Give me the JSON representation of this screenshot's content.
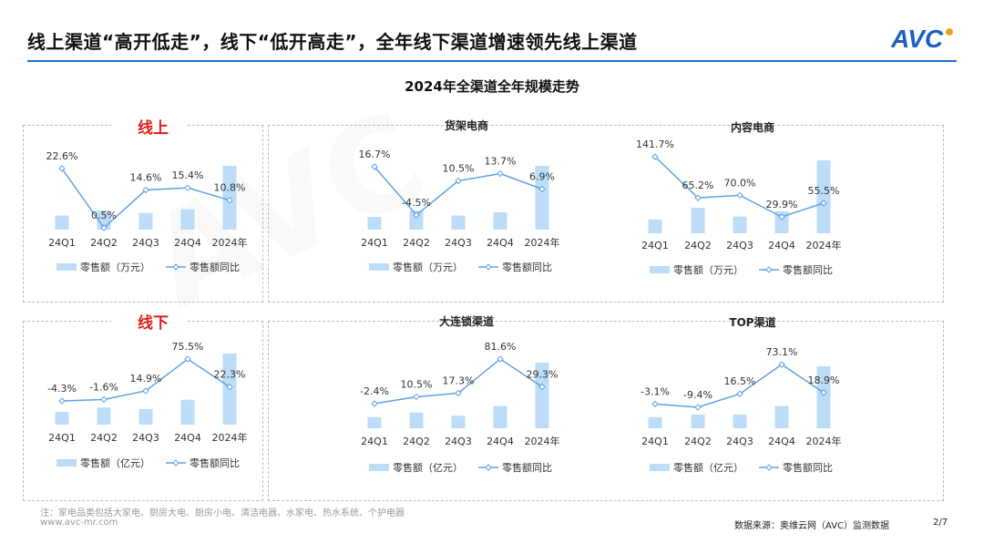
{
  "header": {
    "title": "线上渠道“高开低走”，线下“低开高走”，全年线下渠道增速领先线上渠道",
    "logo_text": "AVC"
  },
  "main_title": "2024年全渠道全年规模走势",
  "section_labels": {
    "online": "线上",
    "offline": "线下"
  },
  "colors": {
    "bar": "#bcdcf7",
    "line": "#5fa2e4",
    "section_label": "#e0201a",
    "header_line": "#1f6fc9"
  },
  "chart_data": [
    {
      "id": "online",
      "type": "bar+line",
      "title": "",
      "categories": [
        "24Q1",
        "24Q2",
        "24Q3",
        "24Q4",
        "2024年"
      ],
      "bar_values": [
        0.22,
        0.3,
        0.26,
        0.32,
        1.0
      ],
      "line_values": [
        22.6,
        0.5,
        14.6,
        15.4,
        10.8
      ],
      "line_labels": [
        "22.6%",
        "0.5%",
        "14.6%",
        "15.4%",
        "10.8%"
      ],
      "legend": [
        "零售额（万元）",
        "零售额同比"
      ]
    },
    {
      "id": "shelf",
      "type": "bar+line",
      "title": "货架电商",
      "categories": [
        "24Q1",
        "24Q2",
        "24Q3",
        "24Q4",
        "2024年"
      ],
      "bar_values": [
        0.2,
        0.3,
        0.22,
        0.27,
        1.0
      ],
      "line_values": [
        16.7,
        -4.5,
        10.5,
        13.7,
        6.9
      ],
      "line_labels": [
        "16.7%",
        "-4.5%",
        "10.5%",
        "13.7%",
        "6.9%"
      ],
      "legend": [
        "零售额（万元）",
        "零售额同比"
      ]
    },
    {
      "id": "content",
      "type": "bar+line",
      "title": "内容电商",
      "categories": [
        "24Q1",
        "24Q2",
        "24Q3",
        "24Q4",
        "2024年"
      ],
      "bar_values": [
        0.19,
        0.35,
        0.23,
        0.3,
        1.0
      ],
      "line_values": [
        141.7,
        65.2,
        70.0,
        29.9,
        55.5
      ],
      "line_labels": [
        "141.7%",
        "65.2%",
        "70.0%",
        "29.9%",
        "55.5%"
      ],
      "legend": [
        "零售额（万元）",
        "零售额同比"
      ]
    },
    {
      "id": "offline",
      "type": "bar+line",
      "title": "",
      "categories": [
        "24Q1",
        "24Q2",
        "24Q3",
        "24Q4",
        "2024年"
      ],
      "bar_values": [
        0.18,
        0.24,
        0.22,
        0.35,
        1.0
      ],
      "line_values": [
        -4.3,
        -1.6,
        14.9,
        75.5,
        22.3
      ],
      "line_labels": [
        "-4.3%",
        "-1.6%",
        "14.9%",
        "75.5%",
        "22.3%"
      ],
      "legend": [
        "零售额（亿元）",
        "零售额同比"
      ]
    },
    {
      "id": "chain",
      "type": "bar+line",
      "title": "大连锁渠道",
      "categories": [
        "24Q1",
        "24Q2",
        "24Q3",
        "24Q4",
        "2024年"
      ],
      "bar_values": [
        0.17,
        0.24,
        0.19,
        0.34,
        1.0
      ],
      "line_values": [
        -2.4,
        10.5,
        17.3,
        81.6,
        29.3
      ],
      "line_labels": [
        "-2.4%",
        "10.5%",
        "17.3%",
        "81.6%",
        "29.3%"
      ],
      "legend": [
        "零售额（亿元）",
        "零售额同比"
      ]
    },
    {
      "id": "top",
      "type": "bar+line",
      "title": "TOP渠道",
      "categories": [
        "24Q1",
        "24Q2",
        "24Q3",
        "24Q4",
        "2024年"
      ],
      "bar_values": [
        0.18,
        0.22,
        0.22,
        0.36,
        1.0
      ],
      "line_values": [
        -3.1,
        -9.4,
        16.5,
        73.1,
        18.9
      ],
      "line_labels": [
        "-3.1%",
        "-9.4%",
        "16.5%",
        "73.1%",
        "18.9%"
      ],
      "legend": [
        "零售额（亿元）",
        "零售额同比"
      ]
    }
  ],
  "footer": {
    "note": "注：家电品类包括大家电、厨房大电、厨房小电、清洁电器、水家电、热水系统、个护电器",
    "website": "www.avc-mr.com",
    "source": "数据来源：奥维云网（AVC）监测数据",
    "page": "2/7"
  }
}
